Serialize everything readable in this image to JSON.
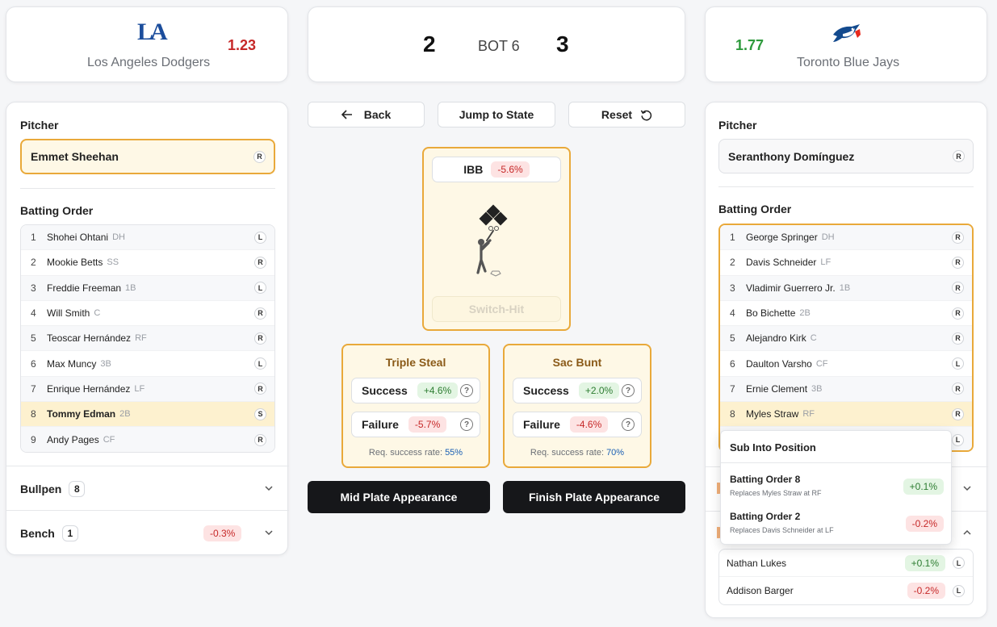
{
  "scoreboard": {
    "away": {
      "name": "Los Angeles Dodgers",
      "logo": "LA",
      "win_prob": "1.23",
      "win_prob_color": "#c62828"
    },
    "home": {
      "name": "Toronto Blue Jays",
      "win_prob": "1.77",
      "win_prob_color": "#2e9a3c"
    },
    "away_score": "2",
    "inning": "BOT 6",
    "home_score": "3"
  },
  "left_panel": {
    "pitcher_label": "Pitcher",
    "pitcher": {
      "name": "Emmet Sheehan",
      "hand": "R"
    },
    "batting_order_label": "Batting Order",
    "batting_order": [
      {
        "num": "1",
        "name": "Shohei Ohtani",
        "pos": "DH",
        "hand": "L"
      },
      {
        "num": "2",
        "name": "Mookie Betts",
        "pos": "SS",
        "hand": "R"
      },
      {
        "num": "3",
        "name": "Freddie Freeman",
        "pos": "1B",
        "hand": "L"
      },
      {
        "num": "4",
        "name": "Will Smith",
        "pos": "C",
        "hand": "R"
      },
      {
        "num": "5",
        "name": "Teoscar Hernández",
        "pos": "RF",
        "hand": "R"
      },
      {
        "num": "6",
        "name": "Max Muncy",
        "pos": "3B",
        "hand": "L"
      },
      {
        "num": "7",
        "name": "Enrique Hernández",
        "pos": "LF",
        "hand": "R"
      },
      {
        "num": "8",
        "name": "Tommy Edman",
        "pos": "2B",
        "hand": "S"
      },
      {
        "num": "9",
        "name": "Andy Pages",
        "pos": "CF",
        "hand": "R"
      }
    ],
    "bullpen_label": "Bullpen",
    "bullpen_count": "8",
    "bench_label": "Bench",
    "bench_count": "1",
    "bench_delta": "-0.3%"
  },
  "controls": {
    "back_label": "Back",
    "jump_label": "Jump to State",
    "reset_label": "Reset"
  },
  "ibb": {
    "label": "IBB",
    "delta": "-5.6%",
    "switch_hit_label": "Switch-Hit"
  },
  "actions": [
    {
      "title": "Triple Steal",
      "success_label": "Success",
      "success_delta": "+4.6%",
      "failure_label": "Failure",
      "failure_delta": "-5.7%",
      "req_label": "Req. success rate:",
      "req_value": "55%"
    },
    {
      "title": "Sac Bunt",
      "success_label": "Success",
      "success_delta": "+2.0%",
      "failure_label": "Failure",
      "failure_delta": "-4.6%",
      "req_label": "Req. success rate:",
      "req_value": "70%"
    }
  ],
  "bottom_buttons": {
    "mid_label": "Mid Plate Appearance",
    "finish_label": "Finish Plate Appearance"
  },
  "right_panel": {
    "pitcher_label": "Pitcher",
    "pitcher": {
      "name": "Seranthony Domínguez",
      "hand": "R"
    },
    "batting_order_label": "Batting Order",
    "batting_order": [
      {
        "num": "1",
        "name": "George Springer",
        "pos": "DH",
        "hand": "R"
      },
      {
        "num": "2",
        "name": "Davis Schneider",
        "pos": "LF",
        "hand": "R"
      },
      {
        "num": "3",
        "name": "Vladimir Guerrero Jr.",
        "pos": "1B",
        "hand": "R"
      },
      {
        "num": "4",
        "name": "Bo Bichette",
        "pos": "2B",
        "hand": "R"
      },
      {
        "num": "5",
        "name": "Alejandro Kirk",
        "pos": "C",
        "hand": "R"
      },
      {
        "num": "6",
        "name": "Daulton Varsho",
        "pos": "CF",
        "hand": "L"
      },
      {
        "num": "7",
        "name": "Ernie Clement",
        "pos": "3B",
        "hand": "R"
      },
      {
        "num": "8",
        "name": "Myles Straw",
        "pos": "RF",
        "hand": "R"
      }
    ],
    "hidden_row_hand": "L",
    "bench": [
      {
        "name": "Nathan Lukes",
        "delta": "+0.1%",
        "hand": "L"
      },
      {
        "name": "Addison Barger",
        "delta": "-0.2%",
        "hand": "L"
      }
    ]
  },
  "sub_popup": {
    "title": "Sub Into Position",
    "items": [
      {
        "title": "Batting Order 8",
        "subtitle": "Replaces Myles Straw at RF",
        "delta": "+0.1%"
      },
      {
        "title": "Batting Order 2",
        "subtitle": "Replaces Davis Schneider at LF",
        "delta": "-0.2%"
      }
    ]
  }
}
